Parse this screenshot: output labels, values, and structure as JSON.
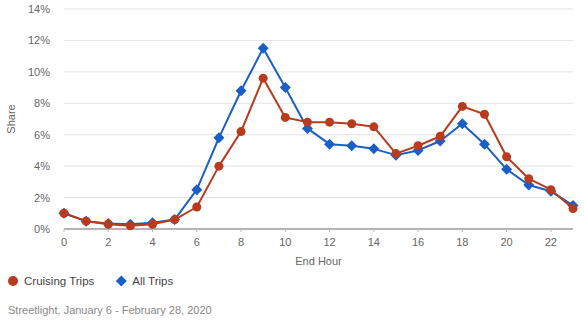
{
  "chart_data": {
    "type": "line",
    "y_label": "Share",
    "x_label": "End Hour",
    "source": "Streetlight, January 6 - February 28, 2020",
    "x": [
      0,
      1,
      2,
      3,
      4,
      5,
      6,
      7,
      8,
      9,
      10,
      11,
      12,
      13,
      14,
      15,
      16,
      17,
      18,
      19,
      20,
      21,
      22,
      23
    ],
    "series": [
      {
        "name": "Cruising Trips",
        "color": "#b83b1e",
        "marker": "circle",
        "values": [
          1.0,
          0.5,
          0.3,
          0.2,
          0.3,
          0.6,
          1.4,
          4.0,
          6.2,
          9.6,
          7.1,
          6.8,
          6.8,
          6.7,
          6.5,
          4.8,
          5.3,
          5.9,
          7.8,
          7.3,
          4.6,
          3.2,
          2.5,
          1.3
        ]
      },
      {
        "name": "All Trips",
        "color": "#1a5fc8",
        "marker": "diamond",
        "values": [
          1.0,
          0.5,
          0.35,
          0.3,
          0.4,
          0.6,
          2.5,
          5.8,
          8.8,
          11.5,
          9.0,
          6.4,
          5.4,
          5.3,
          5.1,
          4.7,
          5.0,
          5.6,
          6.7,
          5.4,
          3.8,
          2.8,
          2.4,
          1.5
        ]
      }
    ],
    "xlim": [
      0,
      23
    ],
    "xticks": [
      0,
      2,
      4,
      6,
      8,
      10,
      12,
      14,
      16,
      18,
      20,
      22
    ],
    "ylim": [
      0,
      14
    ],
    "yticks": [
      {
        "value": 0,
        "label": "0%"
      },
      {
        "value": 2,
        "label": "2%"
      },
      {
        "value": 4,
        "label": "4%"
      },
      {
        "value": 6,
        "label": "6%"
      },
      {
        "value": 8,
        "label": "8%"
      },
      {
        "value": 10,
        "label": "10%"
      },
      {
        "value": 12,
        "label": "12%"
      },
      {
        "value": 14,
        "label": "14%"
      }
    ],
    "grid": true,
    "legend": "bottom-left"
  }
}
